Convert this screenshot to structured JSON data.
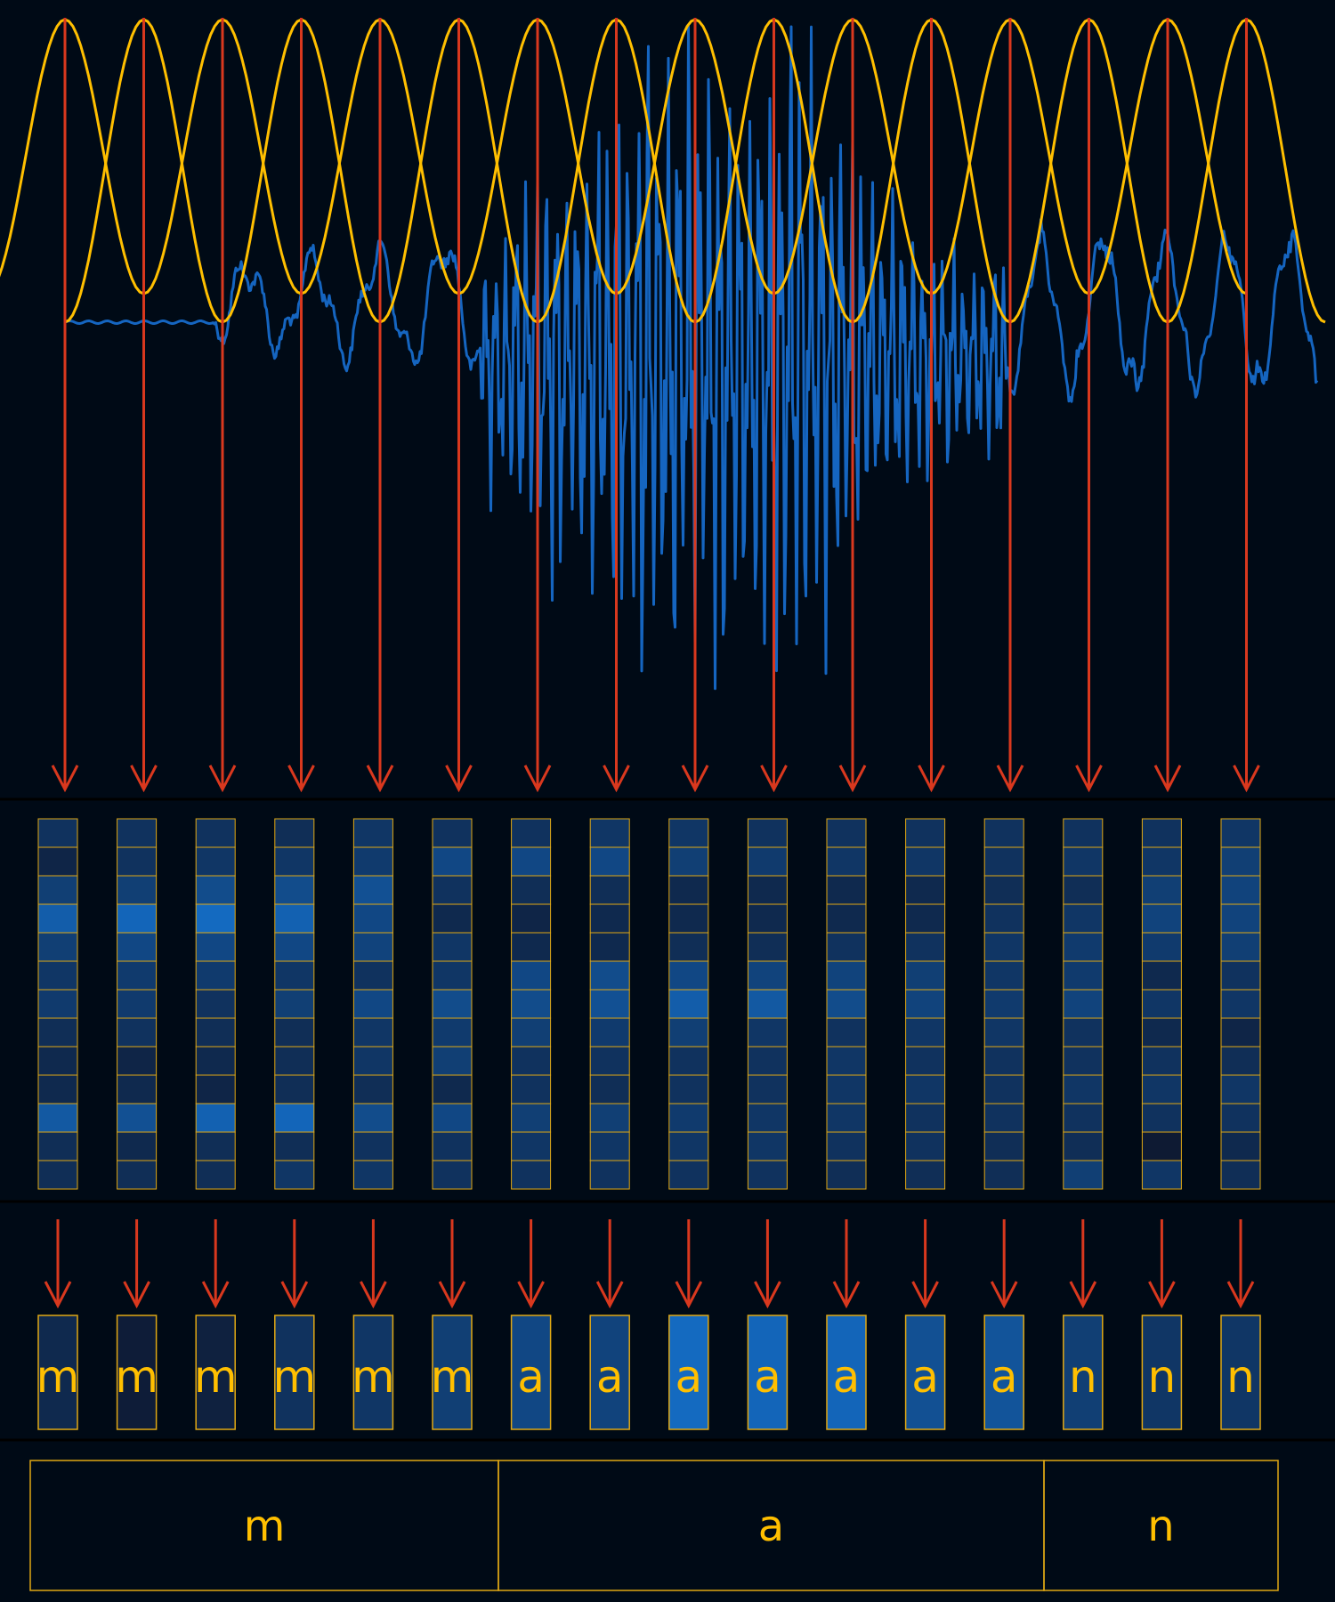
{
  "colors": {
    "background": "#000a16",
    "divider": "#000000",
    "waveform": "#1565c0",
    "window": "#ffbf00",
    "arrow": "#d9381e",
    "cell_border": "#e0a814",
    "text": "#ffbf00"
  },
  "frame_count": 16,
  "frame_labels": [
    "m",
    "m",
    "m",
    "m",
    "m",
    "m",
    "a",
    "a",
    "a",
    "a",
    "a",
    "a",
    "a",
    "n",
    "n",
    "n"
  ],
  "frame_label_intensity": [
    0.2,
    0.05,
    0.1,
    0.3,
    0.35,
    0.45,
    0.55,
    0.5,
    0.95,
    0.9,
    0.9,
    0.65,
    0.7,
    0.45,
    0.35,
    0.35
  ],
  "feature_intensity": [
    [
      0.3,
      0.15,
      0.45,
      0.8,
      0.45,
      0.35,
      0.4,
      0.25,
      0.2,
      0.2,
      0.75,
      0.25,
      0.25
    ],
    [
      0.3,
      0.3,
      0.45,
      0.9,
      0.55,
      0.4,
      0.4,
      0.3,
      0.15,
      0.2,
      0.65,
      0.2,
      0.25
    ],
    [
      0.3,
      0.35,
      0.6,
      0.95,
      0.55,
      0.4,
      0.3,
      0.25,
      0.2,
      0.15,
      0.85,
      0.25,
      0.25
    ],
    [
      0.25,
      0.35,
      0.6,
      0.85,
      0.55,
      0.35,
      0.45,
      0.25,
      0.25,
      0.25,
      0.9,
      0.25,
      0.35
    ],
    [
      0.35,
      0.4,
      0.65,
      0.55,
      0.5,
      0.3,
      0.55,
      0.35,
      0.35,
      0.25,
      0.6,
      0.3,
      0.35
    ],
    [
      0.3,
      0.55,
      0.3,
      0.2,
      0.35,
      0.35,
      0.6,
      0.4,
      0.45,
      0.2,
      0.55,
      0.3,
      0.3
    ],
    [
      0.3,
      0.55,
      0.25,
      0.15,
      0.2,
      0.55,
      0.6,
      0.45,
      0.3,
      0.3,
      0.45,
      0.35,
      0.3
    ],
    [
      0.35,
      0.55,
      0.25,
      0.2,
      0.2,
      0.6,
      0.65,
      0.4,
      0.3,
      0.25,
      0.45,
      0.35,
      0.3
    ],
    [
      0.35,
      0.45,
      0.2,
      0.2,
      0.25,
      0.55,
      0.8,
      0.45,
      0.3,
      0.3,
      0.4,
      0.35,
      0.3
    ],
    [
      0.3,
      0.4,
      0.2,
      0.2,
      0.25,
      0.5,
      0.75,
      0.35,
      0.3,
      0.3,
      0.35,
      0.35,
      0.3
    ],
    [
      0.3,
      0.35,
      0.2,
      0.2,
      0.3,
      0.5,
      0.6,
      0.3,
      0.35,
      0.35,
      0.35,
      0.3,
      0.25
    ],
    [
      0.3,
      0.35,
      0.2,
      0.2,
      0.3,
      0.45,
      0.5,
      0.35,
      0.3,
      0.35,
      0.3,
      0.3,
      0.25
    ],
    [
      0.3,
      0.3,
      0.25,
      0.3,
      0.35,
      0.35,
      0.4,
      0.35,
      0.3,
      0.3,
      0.3,
      0.25,
      0.25
    ],
    [
      0.3,
      0.35,
      0.25,
      0.35,
      0.4,
      0.4,
      0.5,
      0.3,
      0.3,
      0.35,
      0.3,
      0.25,
      0.45
    ],
    [
      0.3,
      0.35,
      0.45,
      0.5,
      0.4,
      0.2,
      0.35,
      0.2,
      0.3,
      0.35,
      0.3,
      0.02,
      0.35
    ],
    [
      0.35,
      0.45,
      0.5,
      0.5,
      0.45,
      0.3,
      0.35,
      0.15,
      0.25,
      0.35,
      0.3,
      0.2,
      0.25
    ]
  ],
  "segments": [
    {
      "label": "m",
      "start_frame": 0,
      "end_frame": 6
    },
    {
      "label": "a",
      "start_frame": 6,
      "end_frame": 13
    },
    {
      "label": "n",
      "start_frame": 13,
      "end_frame": 16
    }
  ]
}
